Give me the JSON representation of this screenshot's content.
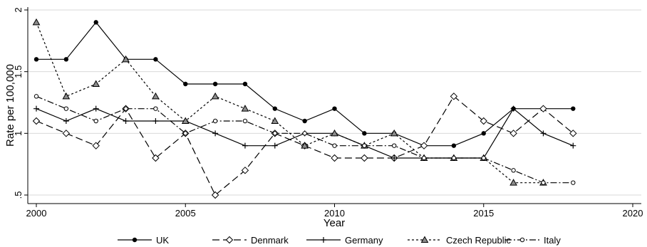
{
  "chart_data": {
    "type": "line",
    "title": "",
    "xlabel": "Year",
    "ylabel": "Rate per 100,000",
    "xlim": [
      2000,
      2020
    ],
    "ylim": [
      0.5,
      2
    ],
    "x_ticks": [
      "2000",
      "2005",
      "2010",
      "2015",
      "2020"
    ],
    "y_ticks": [
      "2",
      "1.5",
      "1",
      ".5"
    ],
    "grid": true,
    "legend_position": "bottom",
    "x": [
      2000,
      2001,
      2002,
      2003,
      2004,
      2005,
      2006,
      2007,
      2008,
      2009,
      2010,
      2011,
      2012,
      2013,
      2014,
      2015,
      2016,
      2017,
      2018
    ],
    "series": [
      {
        "name": "UK",
        "marker": "filled-circle",
        "dash": "solid",
        "color": "#000000",
        "values": [
          1.6,
          1.6,
          1.9,
          1.6,
          1.6,
          1.4,
          1.4,
          1.4,
          1.2,
          1.1,
          1.2,
          1.0,
          1.0,
          0.9,
          0.9,
          1.0,
          1.2,
          1.2,
          1.2
        ]
      },
      {
        "name": "Denmark",
        "marker": "hollow-diamond",
        "dash": "long-dash",
        "color": "#000000",
        "values": [
          1.1,
          1.0,
          0.9,
          1.2,
          0.8,
          1.0,
          0.5,
          0.7,
          1.0,
          0.9,
          0.8,
          0.8,
          0.8,
          0.9,
          1.3,
          1.1,
          1.0,
          1.2,
          1.0
        ]
      },
      {
        "name": "Germany",
        "marker": "plus",
        "dash": "solid",
        "color": "#000000",
        "values": [
          1.2,
          1.1,
          1.2,
          1.1,
          1.1,
          1.1,
          1.0,
          0.9,
          0.9,
          1.0,
          1.0,
          0.9,
          0.8,
          0.8,
          0.8,
          0.8,
          1.2,
          1.0,
          0.9
        ]
      },
      {
        "name": "Czech Republic",
        "marker": "gray-triangle",
        "dash": "short-dash",
        "color": "#000000",
        "values": [
          1.9,
          1.3,
          1.4,
          1.6,
          1.3,
          1.1,
          1.3,
          1.2,
          1.1,
          0.9,
          1.0,
          0.9,
          1.0,
          0.8,
          0.8,
          0.8,
          0.6,
          0.6,
          null
        ]
      },
      {
        "name": "Italy",
        "marker": "hollow-circle",
        "dash": "dash-dot",
        "color": "#000000",
        "values": [
          1.3,
          1.2,
          1.1,
          1.2,
          1.2,
          1.0,
          1.1,
          1.1,
          1.0,
          1.0,
          0.9,
          0.9,
          0.9,
          0.8,
          0.8,
          0.8,
          0.7,
          0.6,
          0.6
        ]
      }
    ]
  }
}
